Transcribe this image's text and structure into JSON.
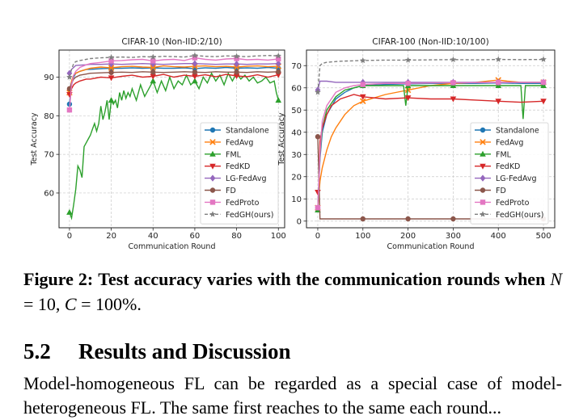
{
  "caption": {
    "label": "Figure 2:",
    "text_before": "Test accuracy varies with the communication rounds when",
    "math": "N = 10, C = 100%.",
    "math_parts": [
      "N",
      " = 10, ",
      "C",
      " = 100%."
    ]
  },
  "section": {
    "number": "5.2",
    "title": "Results and Discussion"
  },
  "body_text": "Model-homogeneous FL can be regarded as a special case of model-heterogeneous FL. The same first reaches to the same each round...",
  "colors": {
    "Standalone": "#1f77b4",
    "FedAvg": "#ff7f0e",
    "FML": "#2ca02c",
    "FedKD": "#d62728",
    "LG-FedAvg": "#9467bd",
    "FD": "#8c564b",
    "FedProto": "#e377c2",
    "FedGH(ours)": "#7f7f7f"
  },
  "chart_data": [
    {
      "type": "line",
      "title": "CIFAR-10 (Non-IID:2/10)",
      "xlabel": "Communication Round",
      "ylabel": "Test Accuracy",
      "xlim": [
        -5,
        103
      ],
      "ylim": [
        51,
        97
      ],
      "xticks": [
        0,
        20,
        40,
        60,
        80,
        100
      ],
      "yticks": [
        60,
        70,
        80,
        90
      ],
      "grid": true,
      "legend_position": "lower-right",
      "series": [
        {
          "name": "Standalone",
          "marker": "o",
          "x": [
            0,
            1,
            2,
            3,
            5,
            8,
            10,
            15,
            20,
            25,
            30,
            35,
            40,
            45,
            50,
            55,
            60,
            65,
            70,
            75,
            80,
            85,
            90,
            95,
            100
          ],
          "y": [
            83,
            88,
            90,
            91,
            91.5,
            92,
            92,
            92.2,
            92.3,
            92.3,
            92.4,
            92.3,
            92.4,
            92.3,
            92.3,
            92.4,
            92.2,
            92.4,
            92.3,
            92.5,
            92.3,
            92.4,
            92.3,
            92.5,
            92.3
          ]
        },
        {
          "name": "FedAvg",
          "marker": "x",
          "x": [
            0,
            1,
            2,
            3,
            5,
            8,
            10,
            15,
            20,
            25,
            30,
            35,
            40,
            45,
            50,
            55,
            60,
            65,
            70,
            75,
            80,
            85,
            90,
            95,
            100
          ],
          "y": [
            86,
            89,
            90.5,
            91,
            91.5,
            92,
            92.3,
            92.6,
            92.4,
            92.7,
            92.8,
            92.6,
            92.5,
            92.9,
            92.7,
            92.6,
            92.8,
            92.9,
            92.7,
            92.8,
            92.6,
            92.8,
            92.9,
            92.7,
            92.8
          ]
        },
        {
          "name": "FML",
          "marker": "^",
          "x": [
            0,
            1,
            2,
            3,
            4,
            5,
            6,
            7,
            8,
            9,
            10,
            11,
            12,
            13,
            14,
            15,
            16,
            17,
            18,
            19,
            20,
            21,
            22,
            23,
            24,
            25,
            26,
            27,
            28,
            29,
            30,
            32,
            34,
            36,
            38,
            40,
            42,
            44,
            46,
            48,
            50,
            52,
            54,
            56,
            58,
            60,
            62,
            64,
            66,
            68,
            70,
            72,
            74,
            76,
            78,
            80,
            82,
            84,
            86,
            88,
            90,
            92,
            94,
            96,
            98,
            99,
            100
          ],
          "y": [
            55,
            53.5,
            57,
            61,
            67,
            66,
            64,
            72,
            73,
            74,
            75,
            76.5,
            78,
            76,
            78,
            82.5,
            79,
            81,
            84,
            79,
            84,
            83,
            84,
            82,
            86,
            84,
            86.5,
            84.5,
            86,
            85,
            87,
            84,
            88,
            85,
            87,
            89,
            86,
            89,
            86.5,
            90,
            87,
            89,
            88,
            90.5,
            88,
            89,
            87,
            90,
            88.5,
            91,
            89,
            90.5,
            88,
            91,
            89,
            91,
            89.5,
            90.5,
            89,
            90,
            88.5,
            89,
            90,
            88.5,
            89,
            86,
            84
          ]
        },
        {
          "name": "FedKD",
          "marker": "v",
          "x": [
            0,
            1,
            2,
            3,
            5,
            8,
            10,
            15,
            20,
            25,
            30,
            35,
            40,
            45,
            50,
            55,
            60,
            65,
            70,
            75,
            80,
            85,
            90,
            95,
            100
          ],
          "y": [
            85.5,
            87,
            88,
            88.5,
            89,
            89.5,
            89.5,
            90,
            89.8,
            90.2,
            90.5,
            90,
            90.2,
            90.7,
            90,
            90.5,
            90.2,
            90.6,
            90.1,
            90.7,
            90.3,
            90.1,
            90.6,
            90,
            90.6
          ]
        },
        {
          "name": "LG-FedAvg",
          "marker": "D",
          "x": [
            0,
            1,
            2,
            3,
            5,
            8,
            10,
            15,
            20,
            25,
            30,
            35,
            40,
            45,
            50,
            55,
            60,
            65,
            70,
            75,
            80,
            85,
            90,
            95,
            100
          ],
          "y": [
            91,
            92,
            92.5,
            93,
            93.1,
            93.2,
            93.3,
            93.3,
            93.4,
            93.3,
            93.4,
            93.5,
            93.4,
            93.3,
            93.4,
            93.5,
            93.5,
            93.4,
            93.3,
            93.4,
            93.4,
            93.3,
            93.4,
            93.4,
            93.5
          ]
        },
        {
          "name": "FD",
          "marker": "o",
          "x": [
            0,
            1,
            2,
            3,
            5,
            8,
            10,
            15,
            20,
            25,
            30,
            35,
            40,
            45,
            50,
            55,
            60,
            65,
            70,
            75,
            80,
            85,
            90,
            95,
            100
          ],
          "y": [
            87,
            88.5,
            89.5,
            90,
            90.5,
            90.8,
            91,
            91.1,
            91.2,
            91.3,
            91.2,
            91.4,
            91.3,
            91.2,
            91.3,
            91.4,
            91.3,
            91.2,
            91.4,
            91.3,
            91.3,
            91.2,
            91.4,
            91.3,
            91.4
          ]
        },
        {
          "name": "FedProto",
          "marker": "s",
          "x": [
            0,
            1,
            2,
            3,
            5,
            8,
            10,
            15,
            20,
            25,
            30,
            35,
            40,
            45,
            50,
            55,
            60,
            65,
            70,
            75,
            80,
            85,
            90,
            95,
            100
          ],
          "y": [
            81.5,
            88,
            90.5,
            91.5,
            92.5,
            93.2,
            93.5,
            93.8,
            94.2,
            94.3,
            94.5,
            94.6,
            94.2,
            94.5,
            94.6,
            94.3,
            95,
            94.6,
            94.4,
            94.7,
            94.8,
            94.5,
            94.6,
            94.4,
            94.7
          ]
        },
        {
          "name": "FedGH(ours)",
          "marker": "*",
          "x": [
            0,
            1,
            2,
            3,
            5,
            8,
            10,
            15,
            20,
            25,
            30,
            35,
            40,
            45,
            50,
            55,
            60,
            65,
            70,
            75,
            80,
            85,
            90,
            95,
            100
          ],
          "y": [
            90,
            92,
            93.5,
            94,
            94.3,
            94.6,
            94.8,
            95,
            95.1,
            95.2,
            95.1,
            95.3,
            95.2,
            95.4,
            95.3,
            95.2,
            95.6,
            95.4,
            95.3,
            95.5,
            95.4,
            95.3,
            95.5,
            95.6,
            95.5
          ]
        }
      ]
    },
    {
      "type": "line",
      "title": "CIFAR-100 (Non-IID:10/100)",
      "xlabel": "Communication Round",
      "ylabel": "Test Accuracy",
      "xlim": [
        -25,
        525
      ],
      "ylim": [
        -3,
        77
      ],
      "xticks": [
        0,
        100,
        200,
        300,
        400,
        500
      ],
      "yticks": [
        0,
        10,
        20,
        30,
        40,
        50,
        60,
        70
      ],
      "grid": true,
      "legend_position": "lower-right",
      "series": [
        {
          "name": "Standalone",
          "marker": "o",
          "x": [
            0,
            5,
            10,
            20,
            40,
            60,
            80,
            100,
            150,
            200,
            250,
            300,
            350,
            400,
            450,
            500
          ],
          "y": [
            6,
            28,
            40,
            48,
            55,
            58,
            60,
            61,
            61.5,
            61.8,
            62,
            62,
            62,
            62.2,
            62,
            62
          ]
        },
        {
          "name": "FedAvg",
          "marker": "x",
          "x": [
            0,
            5,
            10,
            20,
            30,
            40,
            60,
            80,
            100,
            150,
            200,
            250,
            300,
            350,
            400,
            420,
            450,
            500
          ],
          "y": [
            6,
            18,
            24,
            32,
            38,
            42,
            48,
            52,
            54,
            57,
            59,
            61,
            62,
            62.5,
            63.5,
            63,
            62.5,
            62.5
          ]
        },
        {
          "name": "FML",
          "marker": "^",
          "x": [
            0,
            5,
            10,
            20,
            40,
            60,
            80,
            100,
            150,
            190,
            195,
            200,
            250,
            300,
            350,
            400,
            450,
            455,
            460,
            500
          ],
          "y": [
            5,
            30,
            42,
            50,
            56,
            59,
            60,
            61,
            61,
            61,
            52,
            61,
            61,
            61,
            61,
            61,
            61,
            46,
            61,
            61
          ]
        },
        {
          "name": "FedKD",
          "marker": "v",
          "x": [
            0,
            2,
            5,
            10,
            20,
            30,
            50,
            80,
            100,
            150,
            200,
            250,
            300,
            350,
            400,
            450,
            500
          ],
          "y": [
            13,
            12,
            36,
            42,
            48,
            52,
            55,
            57,
            56,
            55,
            55.5,
            55,
            55,
            54.5,
            54,
            53.5,
            54
          ]
        },
        {
          "name": "LG-FedAvg",
          "marker": "D",
          "x": [
            0,
            5,
            10,
            20,
            40,
            60,
            80,
            100,
            200,
            300,
            400,
            500
          ],
          "y": [
            59,
            63,
            63,
            63,
            62.5,
            62.5,
            62.5,
            62.5,
            62.5,
            62.5,
            62.5,
            62.5
          ]
        },
        {
          "name": "FD",
          "marker": "o",
          "x": [
            0,
            5,
            10,
            20,
            100,
            200,
            300,
            500
          ],
          "y": [
            38,
            1,
            1,
            1,
            1,
            1,
            1,
            1
          ]
        },
        {
          "name": "FedProto",
          "marker": "s",
          "x": [
            0,
            5,
            10,
            20,
            40,
            60,
            80,
            100,
            150,
            200,
            250,
            300,
            350,
            400,
            450,
            500
          ],
          "y": [
            6,
            30,
            45,
            52,
            58,
            60,
            61,
            61.5,
            62,
            62,
            62.2,
            62.3,
            62.3,
            62.4,
            62.4,
            62.5
          ]
        },
        {
          "name": "FedGH(ours)",
          "marker": "*",
          "x": [
            0,
            5,
            10,
            20,
            50,
            100,
            150,
            200,
            250,
            300,
            350,
            400,
            450,
            500
          ],
          "y": [
            58,
            70,
            71,
            71.5,
            72,
            72.3,
            72.5,
            72.5,
            72.6,
            72.7,
            72.6,
            72.8,
            72.7,
            72.8
          ]
        }
      ]
    }
  ]
}
